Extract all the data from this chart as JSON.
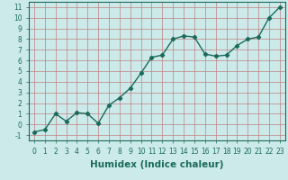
{
  "x": [
    0,
    1,
    2,
    3,
    4,
    5,
    6,
    7,
    8,
    9,
    10,
    11,
    12,
    13,
    14,
    15,
    16,
    17,
    18,
    19,
    20,
    21,
    22,
    23
  ],
  "y": [
    -0.7,
    -0.5,
    1.0,
    0.3,
    1.1,
    1.0,
    0.1,
    1.8,
    2.5,
    3.4,
    4.8,
    6.3,
    6.5,
    8.0,
    8.3,
    8.2,
    6.6,
    6.4,
    6.5,
    7.4,
    8.0,
    8.2,
    10.0,
    11.0
  ],
  "line_color": "#1a6b5a",
  "marker": "D",
  "marker_size": 2.2,
  "bg_color": "#cceaea",
  "grid_color_major": "#c08080",
  "grid_color_minor": "#c08080",
  "xlabel": "Humidex (Indice chaleur)",
  "xlim": [
    -0.5,
    23.5
  ],
  "ylim": [
    -1.5,
    11.5
  ],
  "yticks": [
    -1,
    0,
    1,
    2,
    3,
    4,
    5,
    6,
    7,
    8,
    9,
    10,
    11
  ],
  "xticks": [
    0,
    1,
    2,
    3,
    4,
    5,
    6,
    7,
    8,
    9,
    10,
    11,
    12,
    13,
    14,
    15,
    16,
    17,
    18,
    19,
    20,
    21,
    22,
    23
  ],
  "tick_label_fontsize": 5.5,
  "xlabel_fontsize": 7.5,
  "line_width": 1.0
}
